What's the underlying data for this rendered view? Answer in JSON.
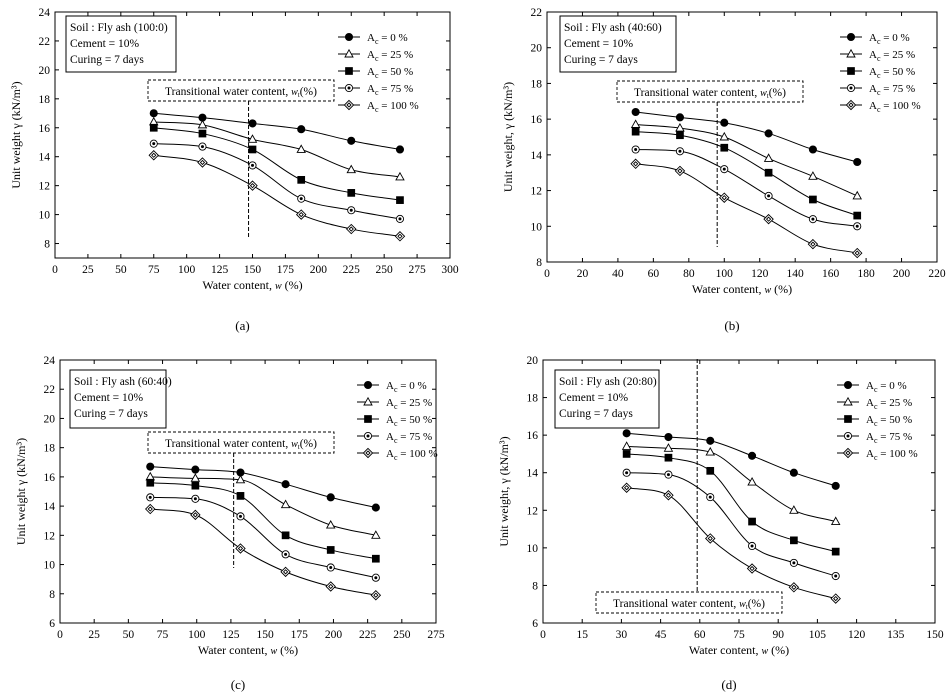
{
  "chart_data": [
    {
      "type": "line",
      "caption": "(a)",
      "info": [
        "Soil : Fly ash (100:0)",
        "Cement = 10%",
        "Curing = 7 days"
      ],
      "transitional_label": "Transitional water content,",
      "transitional_symbol": "w",
      "transitional_sub": "t",
      "transitional_unit": "(%)",
      "transitional_x": 147,
      "xlabel": "Water content,",
      "xlabel_symbol": "w",
      "xlabel_unit": "(%)",
      "ylabel": "Unit weight γ (kN/m³)",
      "xlim": [
        0,
        300
      ],
      "ylim": [
        7,
        24
      ],
      "xticks": [
        0,
        25,
        50,
        75,
        100,
        125,
        150,
        175,
        200,
        225,
        250,
        275,
        300
      ],
      "yticks": [
        8,
        10,
        12,
        14,
        16,
        18,
        20,
        22,
        24
      ],
      "series": [
        {
          "name": "A",
          "sub": "c",
          "suffix": " = 0 %",
          "marker": "circle-filled",
          "x": [
            75,
            112,
            150,
            187,
            225,
            262
          ],
          "y": [
            17.0,
            16.7,
            16.3,
            15.9,
            15.1,
            14.5
          ]
        },
        {
          "name": "A",
          "sub": "c",
          "suffix": " = 25 %",
          "marker": "triangle-open",
          "x": [
            75,
            112,
            150,
            187,
            225,
            262
          ],
          "y": [
            16.4,
            16.2,
            15.2,
            14.5,
            13.1,
            12.6
          ]
        },
        {
          "name": "A",
          "sub": "c",
          "suffix": " = 50 %",
          "marker": "square-filled",
          "x": [
            75,
            112,
            150,
            187,
            225,
            262
          ],
          "y": [
            16.0,
            15.6,
            14.5,
            12.4,
            11.5,
            11.0
          ]
        },
        {
          "name": "A",
          "sub": "c",
          "suffix": " = 75 %",
          "marker": "circle-dot",
          "x": [
            75,
            112,
            150,
            187,
            225,
            262
          ],
          "y": [
            14.9,
            14.7,
            13.4,
            11.1,
            10.3,
            9.7
          ]
        },
        {
          "name": "A",
          "sub": "c",
          "suffix": " = 100 %",
          "marker": "diamond-open",
          "x": [
            75,
            112,
            150,
            187,
            225,
            262
          ],
          "y": [
            14.1,
            13.6,
            12.0,
            10.0,
            9.0,
            8.5
          ]
        }
      ]
    },
    {
      "type": "line",
      "caption": "(b)",
      "info": [
        "Soil : Fly ash (40:60)",
        "Cement = 10%",
        "Curing = 7 days"
      ],
      "transitional_label": "Transitional water content,",
      "transitional_symbol": "w",
      "transitional_sub": "t",
      "transitional_unit": "(%)",
      "transitional_x": 96,
      "xlabel": "Water content,",
      "xlabel_symbol": "w",
      "xlabel_unit": "(%)",
      "ylabel": "Unit weight, γ (kN/m³)",
      "xlim": [
        0,
        220
      ],
      "ylim": [
        8,
        22
      ],
      "xticks": [
        0,
        20,
        40,
        60,
        80,
        100,
        120,
        140,
        160,
        180,
        200,
        220
      ],
      "yticks": [
        8,
        10,
        12,
        14,
        16,
        18,
        20,
        22
      ],
      "series": [
        {
          "name": "A",
          "sub": "c",
          "suffix": " = 0 %",
          "marker": "circle-filled",
          "x": [
            50,
            75,
            100,
            125,
            150,
            175
          ],
          "y": [
            16.4,
            16.1,
            15.8,
            15.2,
            14.3,
            13.6
          ]
        },
        {
          "name": "A",
          "sub": "c",
          "suffix": " = 25 %",
          "marker": "triangle-open",
          "x": [
            50,
            75,
            100,
            125,
            150,
            175
          ],
          "y": [
            15.7,
            15.5,
            15.0,
            13.8,
            12.8,
            11.7
          ]
        },
        {
          "name": "A",
          "sub": "c",
          "suffix": " = 50 %",
          "marker": "square-filled",
          "x": [
            50,
            75,
            100,
            125,
            150,
            175
          ],
          "y": [
            15.3,
            15.1,
            14.4,
            13.0,
            11.5,
            10.6
          ]
        },
        {
          "name": "A",
          "sub": "c",
          "suffix": " = 75 %",
          "marker": "circle-dot",
          "x": [
            50,
            75,
            100,
            125,
            150,
            175
          ],
          "y": [
            14.3,
            14.2,
            13.2,
            11.7,
            10.4,
            10.0
          ]
        },
        {
          "name": "A",
          "sub": "c",
          "suffix": " = 100 %",
          "marker": "diamond-open",
          "x": [
            50,
            75,
            100,
            125,
            150,
            175
          ],
          "y": [
            13.5,
            13.1,
            11.6,
            10.4,
            9.0,
            8.5
          ]
        }
      ]
    },
    {
      "type": "line",
      "caption": "(c)",
      "info": [
        "Soil : Fly ash (60:40)",
        "Cement = 10%",
        "Curing = 7 days"
      ],
      "transitional_label": "Transitional water content,",
      "transitional_symbol": "w",
      "transitional_sub": "t",
      "transitional_unit": "(%)",
      "transitional_x": 127,
      "xlabel": "Water content,",
      "xlabel_symbol": "w",
      "xlabel_unit": "(%)",
      "ylabel": "Unit weight γ (kN/m³)",
      "xlim": [
        0,
        275
      ],
      "ylim": [
        6,
        24
      ],
      "xticks": [
        0,
        25,
        50,
        75,
        100,
        125,
        150,
        175,
        200,
        225,
        250,
        275
      ],
      "yticks": [
        6,
        8,
        10,
        12,
        14,
        16,
        18,
        20,
        22,
        24
      ],
      "series": [
        {
          "name": "A",
          "sub": "c",
          "suffix": " = 0 %",
          "marker": "circle-filled",
          "x": [
            66,
            99,
            132,
            165,
            198,
            231
          ],
          "y": [
            16.7,
            16.5,
            16.3,
            15.5,
            14.6,
            13.9
          ]
        },
        {
          "name": "A",
          "sub": "c",
          "suffix": " = 25 %",
          "marker": "triangle-open",
          "x": [
            66,
            99,
            132,
            165,
            198,
            231
          ],
          "y": [
            16.0,
            15.9,
            15.8,
            14.1,
            12.7,
            12.0
          ]
        },
        {
          "name": "A",
          "sub": "c",
          "suffix": " = 50 %",
          "marker": "square-filled",
          "x": [
            66,
            99,
            132,
            165,
            198,
            231
          ],
          "y": [
            15.6,
            15.4,
            14.7,
            12.0,
            11.0,
            10.4
          ]
        },
        {
          "name": "A",
          "sub": "c",
          "suffix": " = 75 %",
          "marker": "circle-dot",
          "x": [
            66,
            99,
            132,
            165,
            198,
            231
          ],
          "y": [
            14.6,
            14.5,
            13.3,
            10.7,
            9.8,
            9.1
          ]
        },
        {
          "name": "A",
          "sub": "c",
          "suffix": " = 100 %",
          "marker": "diamond-open",
          "x": [
            66,
            99,
            132,
            165,
            198,
            231
          ],
          "y": [
            13.8,
            13.4,
            11.1,
            9.5,
            8.5,
            7.9
          ]
        }
      ]
    },
    {
      "type": "line",
      "caption": "(d)",
      "info": [
        "Soil : Fly ash (20:80)",
        "Cement = 10%",
        "Curing = 7 days"
      ],
      "transitional_label": "Transitional water content,",
      "transitional_symbol": "w",
      "transitional_sub": "t",
      "transitional_unit": "(%)",
      "transitional_x": 59,
      "xlabel": "Water content,",
      "xlabel_symbol": "w",
      "xlabel_unit": "(%)",
      "ylabel": "Unit weight, γ (kN/m³)",
      "xlim": [
        0,
        150
      ],
      "ylim": [
        6,
        20
      ],
      "xticks": [
        0,
        15,
        30,
        45,
        60,
        75,
        90,
        105,
        120,
        135,
        150
      ],
      "yticks": [
        6,
        8,
        10,
        12,
        14,
        16,
        18,
        20
      ],
      "series": [
        {
          "name": "A",
          "sub": "c",
          "suffix": " = 0 %",
          "marker": "circle-filled",
          "x": [
            32,
            48,
            64,
            80,
            96,
            112
          ],
          "y": [
            16.1,
            15.9,
            15.7,
            14.9,
            14.0,
            13.3
          ]
        },
        {
          "name": "A",
          "sub": "c",
          "suffix": " = 25 %",
          "marker": "triangle-open",
          "x": [
            32,
            48,
            64,
            80,
            96,
            112
          ],
          "y": [
            15.4,
            15.3,
            15.1,
            13.5,
            12.0,
            11.4
          ]
        },
        {
          "name": "A",
          "sub": "c",
          "suffix": " = 50 %",
          "marker": "square-filled",
          "x": [
            32,
            48,
            64,
            80,
            96,
            112
          ],
          "y": [
            15.0,
            14.8,
            14.1,
            11.4,
            10.4,
            9.8
          ]
        },
        {
          "name": "A",
          "sub": "c",
          "suffix": " = 75 %",
          "marker": "circle-dot",
          "x": [
            32,
            48,
            64,
            80,
            96,
            112
          ],
          "y": [
            14.0,
            13.9,
            12.7,
            10.1,
            9.2,
            8.5
          ]
        },
        {
          "name": "A",
          "sub": "c",
          "suffix": " = 100 %",
          "marker": "diamond-open",
          "x": [
            32,
            48,
            64,
            80,
            96,
            112
          ],
          "y": [
            13.2,
            12.8,
            10.5,
            8.9,
            7.9,
            7.3
          ]
        }
      ]
    }
  ]
}
